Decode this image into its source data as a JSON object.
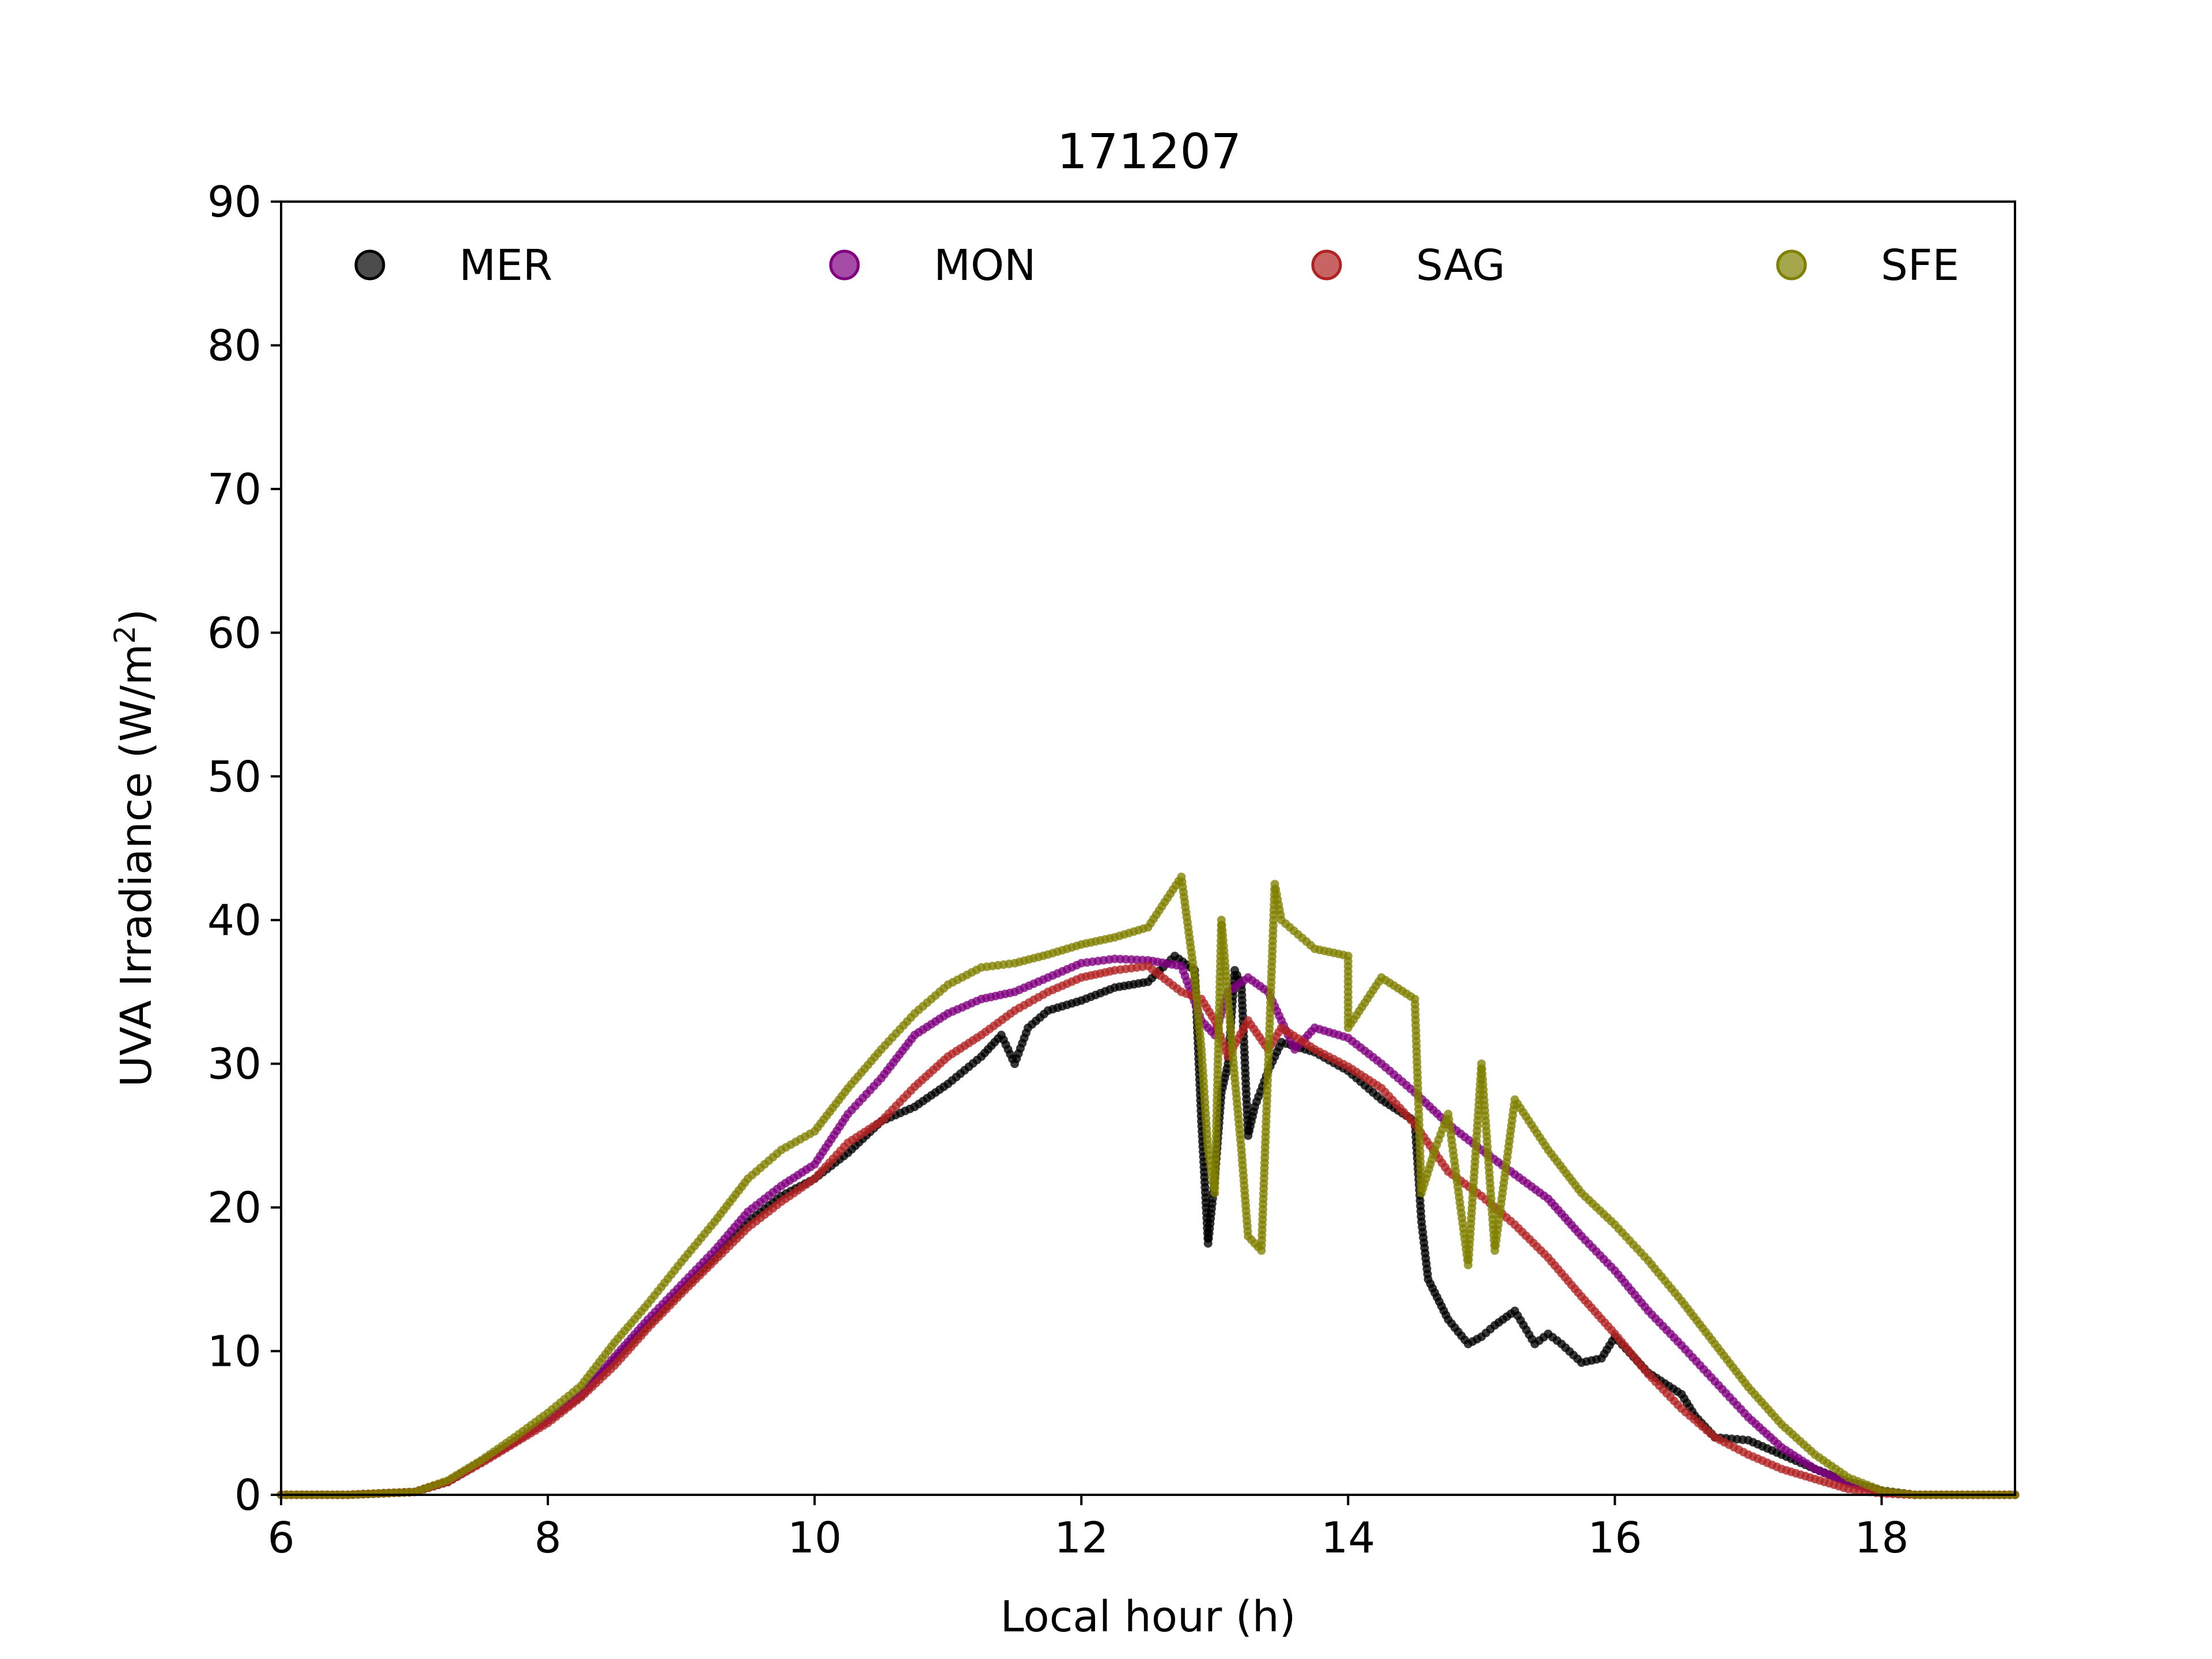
{
  "chart_data": {
    "type": "scatter",
    "title": "171207",
    "xlabel": "Local hour (h)",
    "ylabel_main": "UVA Irradiance (W/m",
    "ylabel_sup": "2",
    "ylabel_close": ")",
    "xlim": [
      6,
      19
    ],
    "ylim": [
      0,
      90
    ],
    "xticks": [
      6,
      8,
      10,
      12,
      14,
      16,
      18
    ],
    "yticks": [
      0,
      10,
      20,
      30,
      40,
      50,
      60,
      70,
      80,
      90
    ],
    "grid": false,
    "legend_position": "top, in one row across the plot",
    "series": [
      {
        "name": "MER",
        "color": "#000000",
        "points": [
          [
            6,
            0
          ],
          [
            6.5,
            0
          ],
          [
            7,
            0.2
          ],
          [
            7.25,
            0.9
          ],
          [
            7.5,
            2.3
          ],
          [
            7.75,
            3.7
          ],
          [
            8,
            5.2
          ],
          [
            8.25,
            6.9
          ],
          [
            8.5,
            9.4
          ],
          [
            8.75,
            11.8
          ],
          [
            9,
            14.2
          ],
          [
            9.25,
            16.5
          ],
          [
            9.5,
            19
          ],
          [
            9.75,
            20.8
          ],
          [
            10,
            22
          ],
          [
            10.25,
            23.8
          ],
          [
            10.5,
            26
          ],
          [
            10.75,
            27
          ],
          [
            11,
            28.6
          ],
          [
            11.25,
            30.5
          ],
          [
            11.4,
            32
          ],
          [
            11.5,
            30
          ],
          [
            11.6,
            32.5
          ],
          [
            11.75,
            33.7
          ],
          [
            12,
            34.4
          ],
          [
            12.25,
            35.3
          ],
          [
            12.5,
            35.7
          ],
          [
            12.7,
            37.5
          ],
          [
            12.85,
            36.5
          ],
          [
            12.9,
            26
          ],
          [
            12.95,
            17.5
          ],
          [
            13,
            22
          ],
          [
            13.05,
            28
          ],
          [
            13.1,
            30
          ],
          [
            13.15,
            36.5
          ],
          [
            13.2,
            35.5
          ],
          [
            13.25,
            25
          ],
          [
            13.3,
            27
          ],
          [
            13.4,
            29.5
          ],
          [
            13.5,
            31.5
          ],
          [
            13.75,
            30.8
          ],
          [
            14,
            29.5
          ],
          [
            14.25,
            27.5
          ],
          [
            14.5,
            26
          ],
          [
            14.55,
            19
          ],
          [
            14.6,
            15
          ],
          [
            14.75,
            12.2
          ],
          [
            14.9,
            10.5
          ],
          [
            15,
            11
          ],
          [
            15.1,
            11.8
          ],
          [
            15.25,
            12.8
          ],
          [
            15.4,
            10.5
          ],
          [
            15.5,
            11.2
          ],
          [
            15.6,
            10.5
          ],
          [
            15.75,
            9.2
          ],
          [
            15.9,
            9.5
          ],
          [
            16,
            11
          ],
          [
            16.25,
            8.5
          ],
          [
            16.5,
            7
          ],
          [
            16.6,
            5.5
          ],
          [
            16.75,
            4
          ],
          [
            17,
            3.8
          ],
          [
            17.25,
            2.8
          ],
          [
            17.5,
            1.8
          ],
          [
            17.75,
            0.9
          ],
          [
            18,
            0.3
          ],
          [
            18.25,
            0
          ],
          [
            19,
            0
          ]
        ]
      },
      {
        "name": "MON",
        "color": "#800080",
        "points": [
          [
            6,
            0
          ],
          [
            6.5,
            0
          ],
          [
            7,
            0.2
          ],
          [
            7.25,
            0.9
          ],
          [
            7.5,
            2.3
          ],
          [
            7.75,
            3.7
          ],
          [
            8,
            5.2
          ],
          [
            8.25,
            7
          ],
          [
            8.5,
            9.6
          ],
          [
            8.75,
            12.2
          ],
          [
            9,
            14.6
          ],
          [
            9.25,
            17
          ],
          [
            9.5,
            19.7
          ],
          [
            9.75,
            21.5
          ],
          [
            10,
            23
          ],
          [
            10.25,
            26.5
          ],
          [
            10.5,
            29
          ],
          [
            10.75,
            32
          ],
          [
            11,
            33.5
          ],
          [
            11.25,
            34.5
          ],
          [
            11.5,
            35
          ],
          [
            11.75,
            36
          ],
          [
            12,
            37
          ],
          [
            12.25,
            37.3
          ],
          [
            12.5,
            37.2
          ],
          [
            12.75,
            36.8
          ],
          [
            12.9,
            33
          ],
          [
            13,
            32
          ],
          [
            13.1,
            35
          ],
          [
            13.25,
            36
          ],
          [
            13.4,
            35
          ],
          [
            13.5,
            33
          ],
          [
            13.6,
            31
          ],
          [
            13.75,
            32.5
          ],
          [
            14,
            31.8
          ],
          [
            14.25,
            30
          ],
          [
            14.5,
            28
          ],
          [
            14.75,
            25.8
          ],
          [
            15,
            24
          ],
          [
            15.25,
            22.3
          ],
          [
            15.5,
            20.6
          ],
          [
            15.75,
            18
          ],
          [
            16,
            15.6
          ],
          [
            16.25,
            12.8
          ],
          [
            16.5,
            10.4
          ],
          [
            16.75,
            7.9
          ],
          [
            17,
            5.4
          ],
          [
            17.25,
            3.3
          ],
          [
            17.5,
            1.8
          ],
          [
            17.75,
            0.8
          ],
          [
            18,
            0.2
          ],
          [
            18.25,
            0
          ],
          [
            19,
            0
          ]
        ]
      },
      {
        "name": "SAG",
        "color": "#b22222",
        "points": [
          [
            6,
            0
          ],
          [
            6.5,
            0
          ],
          [
            7,
            0.2
          ],
          [
            7.25,
            0.9
          ],
          [
            7.5,
            2.2
          ],
          [
            7.75,
            3.6
          ],
          [
            8,
            5
          ],
          [
            8.25,
            6.8
          ],
          [
            8.5,
            9
          ],
          [
            8.75,
            11.6
          ],
          [
            9,
            14
          ],
          [
            9.25,
            16.3
          ],
          [
            9.5,
            18.6
          ],
          [
            9.75,
            20.4
          ],
          [
            10,
            22
          ],
          [
            10.25,
            24.5
          ],
          [
            10.5,
            26
          ],
          [
            10.75,
            28.4
          ],
          [
            11,
            30.5
          ],
          [
            11.25,
            32
          ],
          [
            11.5,
            33.7
          ],
          [
            11.75,
            35
          ],
          [
            12,
            36
          ],
          [
            12.25,
            36.5
          ],
          [
            12.5,
            36.8
          ],
          [
            12.75,
            35
          ],
          [
            12.9,
            34.5
          ],
          [
            13,
            33
          ],
          [
            13.1,
            30.5
          ],
          [
            13.25,
            33
          ],
          [
            13.4,
            31
          ],
          [
            13.5,
            32.5
          ],
          [
            13.75,
            31
          ],
          [
            14,
            29.8
          ],
          [
            14.25,
            28.3
          ],
          [
            14.5,
            25.8
          ],
          [
            14.75,
            22.5
          ],
          [
            15,
            20.8
          ],
          [
            15.25,
            18.8
          ],
          [
            15.5,
            16.5
          ],
          [
            15.75,
            13.8
          ],
          [
            16,
            11.2
          ],
          [
            16.25,
            8.4
          ],
          [
            16.5,
            6
          ],
          [
            16.75,
            4
          ],
          [
            17,
            2.8
          ],
          [
            17.25,
            1.8
          ],
          [
            17.5,
            1.1
          ],
          [
            17.75,
            0.4
          ],
          [
            18,
            0.1
          ],
          [
            18.25,
            0
          ],
          [
            19,
            0
          ]
        ]
      },
      {
        "name": "SFE",
        "color": "#808000",
        "points": [
          [
            6,
            0
          ],
          [
            6.5,
            0
          ],
          [
            7,
            0.2
          ],
          [
            7.25,
            1
          ],
          [
            7.5,
            2.4
          ],
          [
            7.75,
            4
          ],
          [
            8,
            5.7
          ],
          [
            8.25,
            7.6
          ],
          [
            8.5,
            10.6
          ],
          [
            8.75,
            13.3
          ],
          [
            9,
            16.2
          ],
          [
            9.25,
            19
          ],
          [
            9.5,
            22
          ],
          [
            9.75,
            24
          ],
          [
            10,
            25.3
          ],
          [
            10.25,
            28.3
          ],
          [
            10.5,
            31
          ],
          [
            10.75,
            33.5
          ],
          [
            11,
            35.5
          ],
          [
            11.25,
            36.7
          ],
          [
            11.5,
            37
          ],
          [
            11.75,
            37.6
          ],
          [
            12,
            38.3
          ],
          [
            12.25,
            38.8
          ],
          [
            12.5,
            39.5
          ],
          [
            12.75,
            43
          ],
          [
            12.85,
            36
          ],
          [
            12.9,
            31
          ],
          [
            12.95,
            24
          ],
          [
            13,
            21
          ],
          [
            13.05,
            40
          ],
          [
            13.15,
            29
          ],
          [
            13.2,
            24
          ],
          [
            13.25,
            18
          ],
          [
            13.35,
            17
          ],
          [
            13.45,
            42.5
          ],
          [
            13.5,
            40
          ],
          [
            13.75,
            38
          ],
          [
            14,
            37.5
          ],
          [
            14,
            32.5
          ],
          [
            14.25,
            36
          ],
          [
            14.5,
            34.5
          ],
          [
            14.55,
            21
          ],
          [
            14.65,
            24
          ],
          [
            14.75,
            26.5
          ],
          [
            14.9,
            16
          ],
          [
            15,
            30
          ],
          [
            15.1,
            17
          ],
          [
            15.25,
            27.5
          ],
          [
            15.5,
            24
          ],
          [
            15.75,
            21
          ],
          [
            16,
            18.8
          ],
          [
            16.25,
            16.3
          ],
          [
            16.5,
            13.5
          ],
          [
            16.75,
            10.5
          ],
          [
            17,
            7.5
          ],
          [
            17.25,
            4.9
          ],
          [
            17.5,
            2.8
          ],
          [
            17.75,
            1.2
          ],
          [
            18,
            0.3
          ],
          [
            18.25,
            0
          ],
          [
            19,
            0
          ]
        ]
      }
    ]
  }
}
